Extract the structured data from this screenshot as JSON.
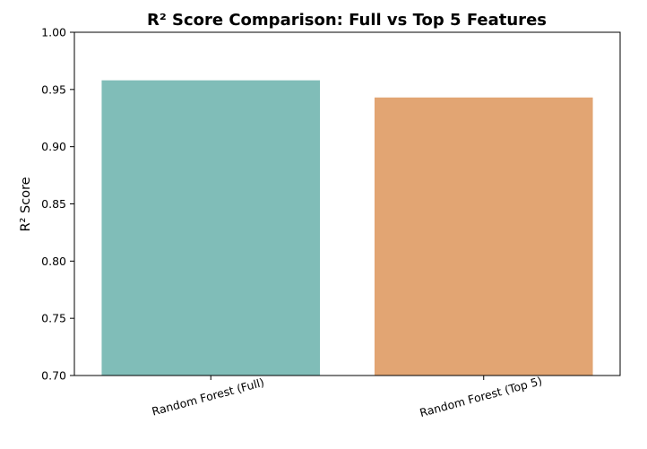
{
  "chart_data": {
    "type": "bar",
    "title": "R² Score Comparison: Full vs Top 5 Features",
    "xlabel": "",
    "ylabel": "R² Score",
    "categories": [
      "Random Forest (Full)",
      "Random Forest (Top 5)"
    ],
    "values": [
      0.958,
      0.943
    ],
    "colors": [
      "#80bdb8",
      "#e2a573"
    ],
    "ylim": [
      0.7,
      1.0
    ],
    "yticks": [
      "0.70",
      "0.75",
      "0.80",
      "0.85",
      "0.90",
      "0.95",
      "1.00"
    ],
    "grid": false,
    "legend": "none"
  }
}
